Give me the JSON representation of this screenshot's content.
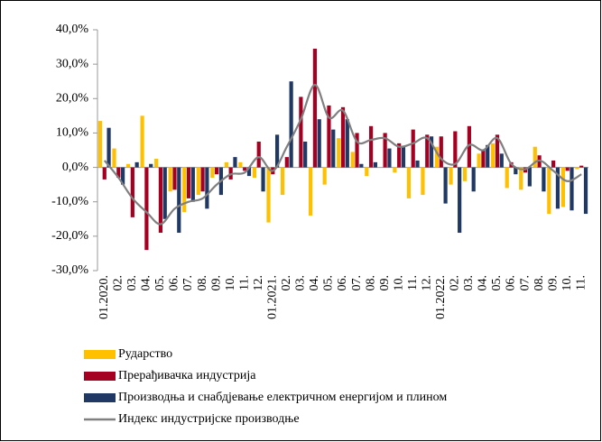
{
  "chart_data": {
    "type": "bar_line",
    "categories": [
      "01.2020.",
      "02.",
      "03.",
      "04.",
      "05.",
      "06.",
      "07.",
      "08.",
      "09.",
      "10.",
      "11.",
      "12.",
      "01.2021.",
      "02.",
      "03.",
      "04.",
      "05.",
      "06.",
      "07.",
      "08.",
      "09.",
      "10.",
      "11.",
      "12.",
      "01.2022.",
      "02.",
      "03.",
      "04.",
      "05.",
      "06.",
      "07.",
      "08.",
      "09.",
      "10.",
      "11."
    ],
    "series": [
      {
        "name": "Рударство",
        "color": "#FFC000",
        "kind": "bar",
        "values": [
          13.5,
          5.5,
          1,
          15,
          2.5,
          -7,
          -13,
          -8,
          -3,
          1.5,
          1.5,
          -3,
          -16,
          -8,
          0,
          -14,
          -5,
          8.5,
          4.5,
          -2.5,
          0,
          -1.5,
          -9,
          -8,
          6,
          -5,
          -4,
          4,
          7,
          -6,
          -6.5,
          6,
          -13.5,
          -11.5,
          -0.5
        ]
      },
      {
        "name": "Прерађивачка индустрија",
        "color": "#A50021",
        "kind": "bar",
        "values": [
          -3.5,
          -3,
          -14.5,
          -24,
          -19,
          -6.5,
          -9,
          -7,
          -2,
          -3.5,
          -1,
          7.5,
          -2,
          3,
          20.5,
          34.5,
          18,
          17.5,
          10,
          12,
          10,
          7,
          11,
          9.5,
          9,
          10.5,
          12,
          5,
          9.5,
          1.5,
          -1.5,
          3.5,
          2,
          -1,
          0.5
        ]
      },
      {
        "name": "Производња и снабдјевање електричном енергијом и плином",
        "color": "#1F3864",
        "kind": "bar",
        "values": [
          11.5,
          -5,
          1.5,
          1,
          -15,
          -19,
          -10,
          -12,
          -8,
          3,
          -2.5,
          -7,
          9.5,
          25,
          7.5,
          14,
          11,
          14,
          1,
          1.5,
          5.5,
          6,
          2,
          9,
          -10.5,
          -19,
          -7,
          6.5,
          4,
          -2,
          -5.5,
          -7,
          -12,
          -12.5,
          -13.5
        ]
      },
      {
        "name": "Индекс индустријске производње",
        "color": "#808080",
        "kind": "line",
        "values": [
          2,
          -3,
          -9,
          -13,
          -16.5,
          -12,
          -10,
          -9,
          -5,
          -2,
          -1.5,
          3,
          -1,
          6,
          14,
          24,
          14.5,
          16.5,
          7.5,
          8,
          8.5,
          6,
          7,
          8.5,
          2.5,
          1,
          6.5,
          5,
          8.5,
          1,
          -0.5,
          2,
          -1,
          -4,
          -2
        ]
      }
    ],
    "ylim": [
      -30,
      40
    ],
    "yticks": [
      {
        "value": -30,
        "label": "-30,0%"
      },
      {
        "value": -20,
        "label": "-20,0%"
      },
      {
        "value": -10,
        "label": "-10,0%"
      },
      {
        "value": 0,
        "label": "0,0%"
      },
      {
        "value": 10,
        "label": "10,0%"
      },
      {
        "value": 20,
        "label": "20,0%"
      },
      {
        "value": 30,
        "label": "30,0%"
      },
      {
        "value": 40,
        "label": "40,0%"
      }
    ]
  }
}
